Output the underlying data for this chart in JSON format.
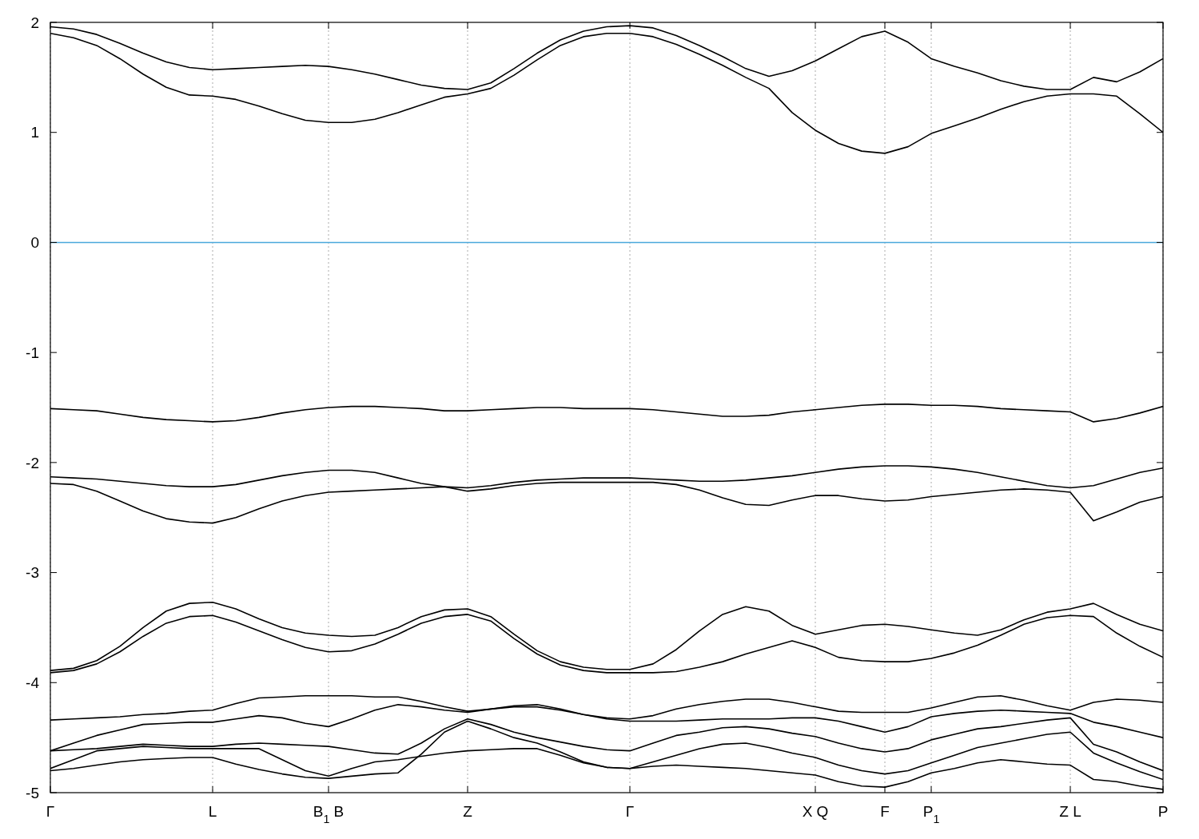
{
  "chart_data": {
    "type": "line",
    "categories": [
      "Γ",
      null,
      null,
      null,
      null,
      null,
      null,
      "L",
      null,
      null,
      null,
      null,
      "B$_{1}$ B",
      null,
      null,
      null,
      null,
      null,
      "Z",
      null,
      null,
      null,
      null,
      null,
      null,
      "Γ",
      null,
      null,
      null,
      null,
      null,
      null,
      null,
      "X Q",
      null,
      null,
      "F",
      null,
      "P$_{1}$",
      null,
      null,
      null,
      null,
      null,
      "Z L",
      null,
      null,
      null,
      "P"
    ],
    "ylim": [
      -5,
      2
    ],
    "yticks": [
      -5,
      -4,
      -3,
      -2,
      -1,
      0,
      1,
      2
    ],
    "grid": "x",
    "ref_lines": [
      {
        "axis": "y",
        "value": 0,
        "color": "#4aa8dc"
      }
    ],
    "series": [
      {
        "color": "#000000",
        "values": [
          1.96,
          1.94,
          1.89,
          1.81,
          1.72,
          1.64,
          1.59,
          1.57,
          1.58,
          1.59,
          1.6,
          1.61,
          1.6,
          1.57,
          1.53,
          1.48,
          1.43,
          1.4,
          1.39,
          1.45,
          1.58,
          1.72,
          1.84,
          1.92,
          1.96,
          1.97,
          1.95,
          1.88,
          1.79,
          1.69,
          1.58,
          1.51,
          1.56,
          1.65,
          1.76,
          1.87,
          1.92,
          1.82,
          1.67,
          1.6,
          1.54,
          1.47,
          1.42,
          1.39,
          1.39,
          1.5,
          1.46,
          1.55,
          1.67
        ]
      },
      {
        "color": "#000000",
        "values": [
          1.9,
          1.86,
          1.79,
          1.67,
          1.53,
          1.41,
          1.34,
          1.33,
          1.3,
          1.24,
          1.17,
          1.11,
          1.09,
          1.09,
          1.12,
          1.18,
          1.25,
          1.32,
          1.35,
          1.4,
          1.52,
          1.66,
          1.79,
          1.87,
          1.9,
          1.9,
          1.87,
          1.8,
          1.71,
          1.61,
          1.5,
          1.4,
          1.18,
          1.02,
          0.9,
          0.83,
          0.81,
          0.87,
          0.99,
          1.06,
          1.13,
          1.21,
          1.28,
          1.33,
          1.35,
          1.35,
          1.33,
          1.17,
          1.0
        ]
      },
      {
        "color": "#000000",
        "values": [
          -1.51,
          -1.52,
          -1.53,
          -1.56,
          -1.59,
          -1.61,
          -1.62,
          -1.63,
          -1.62,
          -1.59,
          -1.55,
          -1.52,
          -1.5,
          -1.49,
          -1.49,
          -1.5,
          -1.51,
          -1.53,
          -1.53,
          -1.52,
          -1.51,
          -1.5,
          -1.5,
          -1.51,
          -1.51,
          -1.51,
          -1.52,
          -1.54,
          -1.56,
          -1.58,
          -1.58,
          -1.57,
          -1.54,
          -1.52,
          -1.5,
          -1.48,
          -1.47,
          -1.47,
          -1.48,
          -1.48,
          -1.49,
          -1.51,
          -1.52,
          -1.53,
          -1.54,
          -1.63,
          -1.6,
          -1.55,
          -1.49
        ]
      },
      {
        "color": "#000000",
        "values": [
          -2.13,
          -2.14,
          -2.15,
          -2.17,
          -2.19,
          -2.21,
          -2.22,
          -2.22,
          -2.2,
          -2.16,
          -2.12,
          -2.09,
          -2.07,
          -2.07,
          -2.09,
          -2.14,
          -2.19,
          -2.22,
          -2.23,
          -2.21,
          -2.18,
          -2.16,
          -2.15,
          -2.14,
          -2.14,
          -2.14,
          -2.15,
          -2.16,
          -2.17,
          -2.17,
          -2.16,
          -2.14,
          -2.12,
          -2.09,
          -2.06,
          -2.04,
          -2.03,
          -2.03,
          -2.04,
          -2.06,
          -2.09,
          -2.13,
          -2.17,
          -2.21,
          -2.23,
          -2.21,
          -2.15,
          -2.09,
          -2.05
        ]
      },
      {
        "color": "#000000",
        "values": [
          -2.19,
          -2.2,
          -2.26,
          -2.35,
          -2.44,
          -2.51,
          -2.54,
          -2.55,
          -2.5,
          -2.42,
          -2.35,
          -2.3,
          -2.27,
          -2.26,
          -2.25,
          -2.24,
          -2.23,
          -2.22,
          -2.26,
          -2.24,
          -2.21,
          -2.19,
          -2.18,
          -2.18,
          -2.18,
          -2.18,
          -2.18,
          -2.2,
          -2.25,
          -2.32,
          -2.38,
          -2.39,
          -2.34,
          -2.3,
          -2.3,
          -2.33,
          -2.35,
          -2.34,
          -2.31,
          -2.29,
          -2.27,
          -2.25,
          -2.24,
          -2.25,
          -2.27,
          -2.53,
          -2.45,
          -2.36,
          -2.31
        ]
      },
      {
        "color": "#000000",
        "values": [
          -3.89,
          -3.87,
          -3.8,
          -3.67,
          -3.5,
          -3.35,
          -3.28,
          -3.27,
          -3.33,
          -3.42,
          -3.5,
          -3.55,
          -3.57,
          -3.58,
          -3.57,
          -3.5,
          -3.4,
          -3.34,
          -3.33,
          -3.4,
          -3.56,
          -3.71,
          -3.81,
          -3.86,
          -3.88,
          -3.88,
          -3.83,
          -3.7,
          -3.53,
          -3.38,
          -3.31,
          -3.35,
          -3.48,
          -3.56,
          -3.52,
          -3.48,
          -3.47,
          -3.49,
          -3.52,
          -3.55,
          -3.57,
          -3.52,
          -3.43,
          -3.36,
          -3.33,
          -3.28,
          -3.38,
          -3.47,
          -3.53
        ]
      },
      {
        "color": "#000000",
        "values": [
          -3.91,
          -3.89,
          -3.83,
          -3.72,
          -3.58,
          -3.46,
          -3.4,
          -3.39,
          -3.45,
          -3.53,
          -3.61,
          -3.68,
          -3.72,
          -3.71,
          -3.65,
          -3.56,
          -3.46,
          -3.4,
          -3.38,
          -3.44,
          -3.6,
          -3.74,
          -3.84,
          -3.89,
          -3.91,
          -3.91,
          -3.91,
          -3.9,
          -3.86,
          -3.81,
          -3.74,
          -3.68,
          -3.62,
          -3.68,
          -3.77,
          -3.8,
          -3.81,
          -3.81,
          -3.78,
          -3.73,
          -3.66,
          -3.57,
          -3.47,
          -3.41,
          -3.39,
          -3.4,
          -3.55,
          -3.67,
          -3.77
        ]
      },
      {
        "color": "#000000",
        "values": [
          -4.34,
          -4.33,
          -4.32,
          -4.31,
          -4.29,
          -4.28,
          -4.26,
          -4.25,
          -4.19,
          -4.14,
          -4.13,
          -4.12,
          -4.12,
          -4.12,
          -4.13,
          -4.13,
          -4.17,
          -4.22,
          -4.26,
          -4.24,
          -4.22,
          -4.22,
          -4.25,
          -4.29,
          -4.32,
          -4.33,
          -4.3,
          -4.24,
          -4.2,
          -4.17,
          -4.15,
          -4.15,
          -4.18,
          -4.22,
          -4.26,
          -4.27,
          -4.27,
          -4.27,
          -4.23,
          -4.18,
          -4.13,
          -4.12,
          -4.16,
          -4.21,
          -4.25,
          -4.18,
          -4.15,
          -4.16,
          -4.18
        ]
      },
      {
        "color": "#000000",
        "values": [
          -4.62,
          -4.55,
          -4.48,
          -4.43,
          -4.38,
          -4.37,
          -4.36,
          -4.36,
          -4.33,
          -4.3,
          -4.32,
          -4.37,
          -4.4,
          -4.33,
          -4.25,
          -4.2,
          -4.22,
          -4.25,
          -4.27,
          -4.24,
          -4.21,
          -4.2,
          -4.24,
          -4.29,
          -4.33,
          -4.35,
          -4.35,
          -4.35,
          -4.34,
          -4.33,
          -4.33,
          -4.33,
          -4.32,
          -4.32,
          -4.35,
          -4.4,
          -4.45,
          -4.4,
          -4.31,
          -4.28,
          -4.26,
          -4.25,
          -4.26,
          -4.27,
          -4.28,
          -4.36,
          -4.4,
          -4.45,
          -4.5
        ]
      },
      {
        "color": "#000000",
        "values": [
          -4.62,
          -4.61,
          -4.6,
          -4.58,
          -4.56,
          -4.57,
          -4.58,
          -4.58,
          -4.56,
          -4.55,
          -4.56,
          -4.57,
          -4.58,
          -4.61,
          -4.64,
          -4.65,
          -4.55,
          -4.42,
          -4.33,
          -4.38,
          -4.45,
          -4.5,
          -4.54,
          -4.58,
          -4.61,
          -4.62,
          -4.55,
          -4.48,
          -4.45,
          -4.41,
          -4.4,
          -4.42,
          -4.46,
          -4.49,
          -4.55,
          -4.6,
          -4.63,
          -4.6,
          -4.52,
          -4.47,
          -4.42,
          -4.4,
          -4.37,
          -4.34,
          -4.32,
          -4.56,
          -4.63,
          -4.72,
          -4.8
        ]
      },
      {
        "color": "#000000",
        "values": [
          -4.78,
          -4.7,
          -4.62,
          -4.6,
          -4.58,
          -4.59,
          -4.6,
          -4.6,
          -4.6,
          -4.6,
          -4.7,
          -4.8,
          -4.85,
          -4.78,
          -4.72,
          -4.7,
          -4.67,
          -4.64,
          -4.62,
          -4.61,
          -4.6,
          -4.6,
          -4.66,
          -4.73,
          -4.77,
          -4.78,
          -4.72,
          -4.66,
          -4.6,
          -4.56,
          -4.55,
          -4.59,
          -4.64,
          -4.68,
          -4.75,
          -4.8,
          -4.83,
          -4.8,
          -4.73,
          -4.66,
          -4.59,
          -4.55,
          -4.51,
          -4.47,
          -4.45,
          -4.64,
          -4.73,
          -4.81,
          -4.88
        ]
      },
      {
        "color": "#000000",
        "values": [
          -4.8,
          -4.78,
          -4.75,
          -4.72,
          -4.7,
          -4.69,
          -4.68,
          -4.68,
          -4.74,
          -4.79,
          -4.83,
          -4.86,
          -4.87,
          -4.85,
          -4.83,
          -4.82,
          -4.65,
          -4.45,
          -4.35,
          -4.42,
          -4.5,
          -4.55,
          -4.63,
          -4.72,
          -4.77,
          -4.78,
          -4.76,
          -4.75,
          -4.76,
          -4.77,
          -4.78,
          -4.8,
          -4.82,
          -4.84,
          -4.9,
          -4.94,
          -4.95,
          -4.9,
          -4.82,
          -4.78,
          -4.73,
          -4.7,
          -4.72,
          -4.74,
          -4.75,
          -4.88,
          -4.9,
          -4.94,
          -4.97
        ]
      }
    ]
  }
}
